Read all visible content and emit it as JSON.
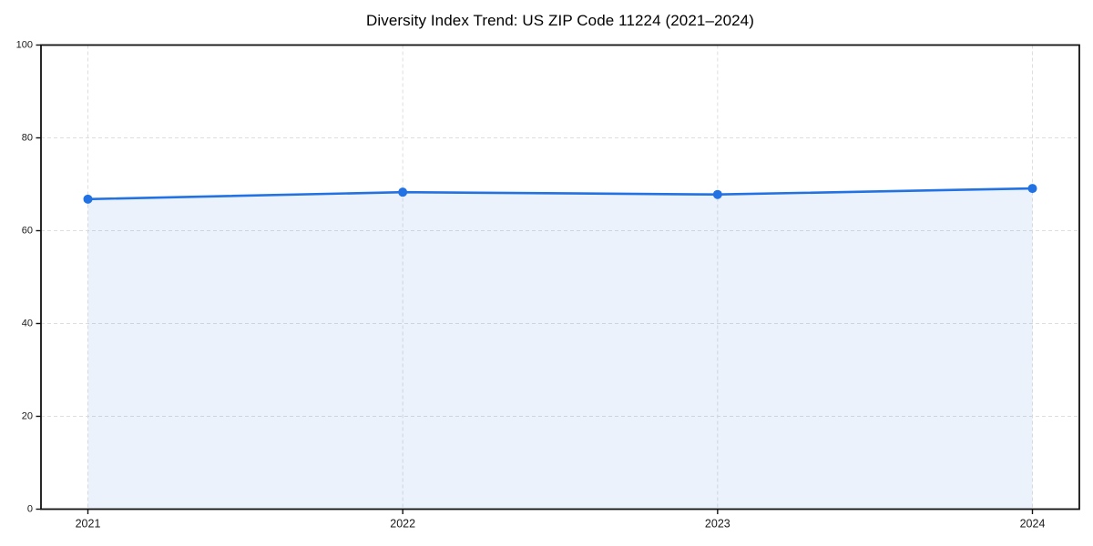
{
  "page": {
    "background_color": "#ffffff"
  },
  "chart_data": {
    "type": "area",
    "title": "Diversity Index Trend: US ZIP Code 11224 (2021–2024)",
    "series_name": "Diversity Index",
    "categories": [
      "2021",
      "2022",
      "2023",
      "2024"
    ],
    "values": [
      66.8,
      68.3,
      67.8,
      69.1
    ],
    "xlabel": "",
    "ylabel": "",
    "ylim": [
      0,
      100
    ],
    "yticks": [
      0,
      20,
      40,
      60,
      80,
      100
    ],
    "grid": true,
    "grid_style": "dashed",
    "legend_position": "none",
    "line_color": "#2272e3",
    "marker_color": "#2272e3",
    "fill_color": "rgba(34,114,227,0.09)",
    "grid_color": "#dedede",
    "axis_color": "#111111",
    "tick_label_color": "#1a1a1a",
    "title_color": "#000000"
  }
}
